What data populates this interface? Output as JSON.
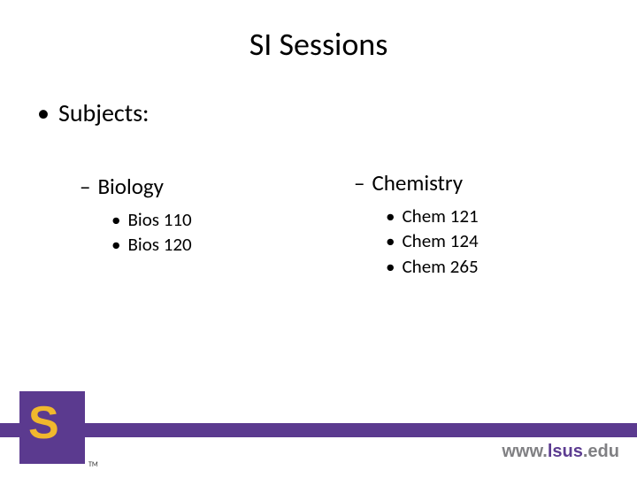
{
  "title": "SI Sessions",
  "bullet_level1": "Subjects:",
  "columns": {
    "left": {
      "heading": "Biology",
      "items": [
        "Bios 110",
        "Bios 120"
      ]
    },
    "right": {
      "heading": "Chemistry",
      "items": [
        "Chem 121",
        "Chem 124",
        "Chem 265"
      ]
    }
  },
  "footer": {
    "bar_color": "#5b3a8f",
    "logo_bg": "#5b3a8f",
    "logo_letter_color": "#f1b82d",
    "logo_letter": "S",
    "tm": "TM",
    "url_prefix": "www.",
    "url_mid": "lsus",
    "url_suffix": ".edu"
  },
  "styling": {
    "background": "#ffffff",
    "title_fontsize": 36,
    "bullet1_fontsize": 28,
    "dash_fontsize": 25,
    "sub_fontsize": 21,
    "text_color": "#000000",
    "url_gray": "#808083",
    "url_purple": "#5d3d91"
  }
}
